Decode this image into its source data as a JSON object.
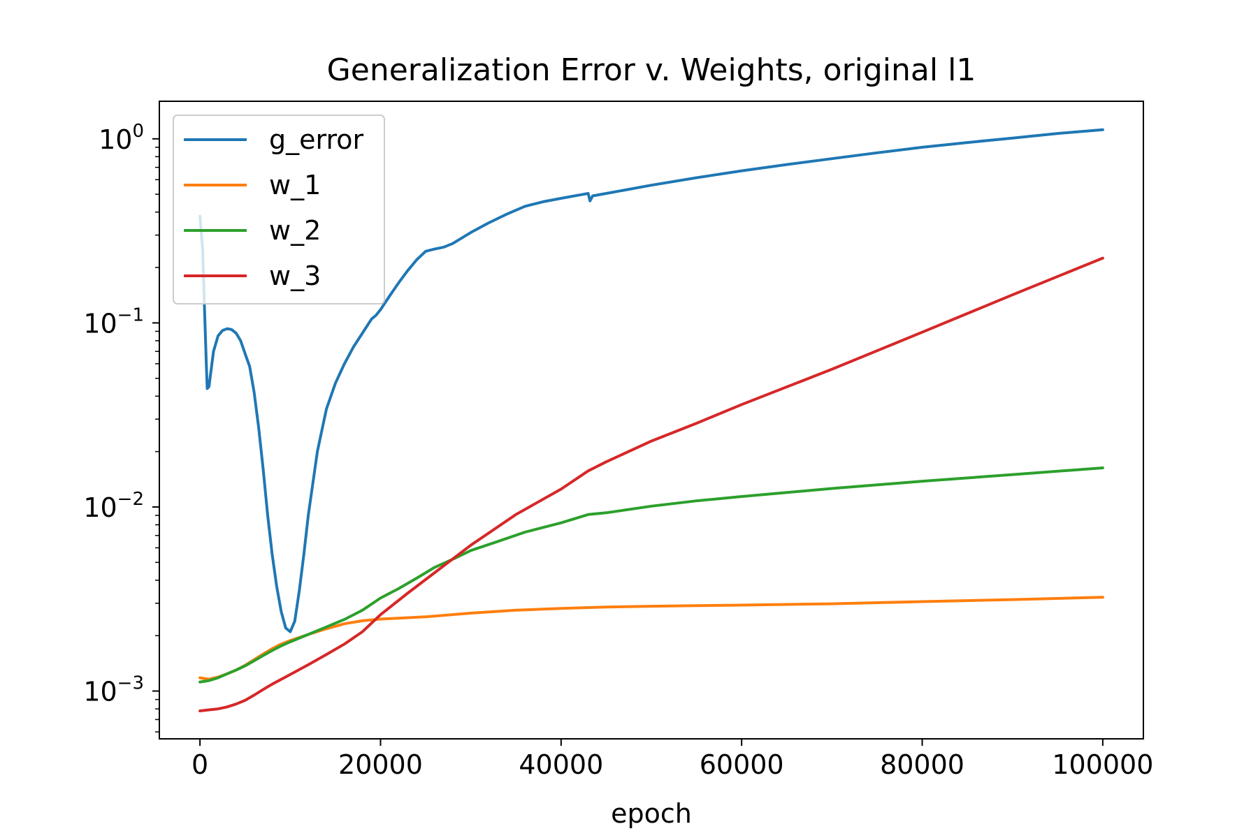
{
  "chart_data": {
    "type": "line",
    "title": "Generalization Error v. Weights, original l1",
    "xlabel": "epoch",
    "ylabel": "",
    "xlim": [
      -4500,
      104500
    ],
    "ylim": [
      0.00055,
      1.6
    ],
    "yscale": "log",
    "grid": false,
    "legend_position": "upper-left",
    "x_ticks": [
      {
        "value": 0,
        "label": "0"
      },
      {
        "value": 20000,
        "label": "20000"
      },
      {
        "value": 40000,
        "label": "40000"
      },
      {
        "value": 60000,
        "label": "60000"
      },
      {
        "value": 80000,
        "label": "80000"
      },
      {
        "value": 100000,
        "label": "100000"
      }
    ],
    "y_ticks": [
      {
        "value": 0.001,
        "base": "10",
        "exp": "−3"
      },
      {
        "value": 0.01,
        "base": "10",
        "exp": "−2"
      },
      {
        "value": 0.1,
        "base": "10",
        "exp": "−1"
      },
      {
        "value": 1,
        "base": "10",
        "exp": "0"
      }
    ],
    "series": [
      {
        "name": "g_error",
        "color": "#1f77b4",
        "points": [
          [
            0,
            0.38
          ],
          [
            300,
            0.25
          ],
          [
            500,
            0.12
          ],
          [
            700,
            0.06
          ],
          [
            800,
            0.044
          ],
          [
            1000,
            0.045
          ],
          [
            1500,
            0.07
          ],
          [
            2000,
            0.085
          ],
          [
            2500,
            0.091
          ],
          [
            3000,
            0.093
          ],
          [
            3500,
            0.092
          ],
          [
            4000,
            0.088
          ],
          [
            4500,
            0.08
          ],
          [
            5000,
            0.068
          ],
          [
            5500,
            0.058
          ],
          [
            6000,
            0.042
          ],
          [
            6500,
            0.027
          ],
          [
            7000,
            0.016
          ],
          [
            7500,
            0.009
          ],
          [
            8000,
            0.0055
          ],
          [
            8500,
            0.0037
          ],
          [
            9000,
            0.0027
          ],
          [
            9500,
            0.0022
          ],
          [
            10000,
            0.0021
          ],
          [
            10500,
            0.0024
          ],
          [
            11000,
            0.0035
          ],
          [
            11500,
            0.0055
          ],
          [
            12000,
            0.009
          ],
          [
            13000,
            0.02
          ],
          [
            14000,
            0.034
          ],
          [
            15000,
            0.047
          ],
          [
            16000,
            0.06
          ],
          [
            17000,
            0.074
          ],
          [
            18000,
            0.088
          ],
          [
            19000,
            0.105
          ],
          [
            19500,
            0.11
          ],
          [
            20000,
            0.118
          ],
          [
            21000,
            0.14
          ],
          [
            22000,
            0.165
          ],
          [
            23000,
            0.192
          ],
          [
            24000,
            0.22
          ],
          [
            25000,
            0.245
          ],
          [
            26000,
            0.252
          ],
          [
            27000,
            0.258
          ],
          [
            28000,
            0.27
          ],
          [
            30000,
            0.31
          ],
          [
            32000,
            0.35
          ],
          [
            34000,
            0.39
          ],
          [
            36000,
            0.43
          ],
          [
            38000,
            0.455
          ],
          [
            40000,
            0.475
          ],
          [
            42000,
            0.495
          ],
          [
            43000,
            0.505
          ],
          [
            43200,
            0.46
          ],
          [
            43500,
            0.49
          ],
          [
            45000,
            0.505
          ],
          [
            50000,
            0.56
          ],
          [
            55000,
            0.615
          ],
          [
            60000,
            0.67
          ],
          [
            65000,
            0.725
          ],
          [
            70000,
            0.78
          ],
          [
            75000,
            0.84
          ],
          [
            80000,
            0.9
          ],
          [
            85000,
            0.955
          ],
          [
            90000,
            1.01
          ],
          [
            95000,
            1.07
          ],
          [
            100000,
            1.12
          ]
        ]
      },
      {
        "name": "w_1",
        "color": "#ff7f0e",
        "points": [
          [
            0,
            0.00118
          ],
          [
            1000,
            0.00116
          ],
          [
            2000,
            0.00119
          ],
          [
            3000,
            0.00124
          ],
          [
            4000,
            0.0013
          ],
          [
            5000,
            0.00138
          ],
          [
            6000,
            0.00148
          ],
          [
            7000,
            0.00159
          ],
          [
            8000,
            0.0017
          ],
          [
            9000,
            0.0018
          ],
          [
            10000,
            0.00188
          ],
          [
            12000,
            0.00203
          ],
          [
            14000,
            0.00218
          ],
          [
            16000,
            0.00232
          ],
          [
            18000,
            0.00241
          ],
          [
            20000,
            0.00246
          ],
          [
            25000,
            0.00253
          ],
          [
            30000,
            0.00265
          ],
          [
            35000,
            0.00275
          ],
          [
            40000,
            0.00281
          ],
          [
            45000,
            0.00286
          ],
          [
            50000,
            0.00289
          ],
          [
            60000,
            0.00293
          ],
          [
            70000,
            0.00298
          ],
          [
            80000,
            0.00306
          ],
          [
            90000,
            0.00314
          ],
          [
            100000,
            0.00323
          ]
        ]
      },
      {
        "name": "w_2",
        "color": "#2ca02c",
        "points": [
          [
            0,
            0.00112
          ],
          [
            1000,
            0.00114
          ],
          [
            2000,
            0.00118
          ],
          [
            3000,
            0.00124
          ],
          [
            4000,
            0.0013
          ],
          [
            5000,
            0.00137
          ],
          [
            6000,
            0.00146
          ],
          [
            7000,
            0.00156
          ],
          [
            8000,
            0.00166
          ],
          [
            9000,
            0.00176
          ],
          [
            10000,
            0.00185
          ],
          [
            12000,
            0.00203
          ],
          [
            14000,
            0.00223
          ],
          [
            16000,
            0.00245
          ],
          [
            18000,
            0.00275
          ],
          [
            20000,
            0.0032
          ],
          [
            22000,
            0.0036
          ],
          [
            24000,
            0.0041
          ],
          [
            26000,
            0.0047
          ],
          [
            28000,
            0.0052
          ],
          [
            30000,
            0.0058
          ],
          [
            33000,
            0.0065
          ],
          [
            36000,
            0.0073
          ],
          [
            40000,
            0.0082
          ],
          [
            43000,
            0.0091
          ],
          [
            45000,
            0.0093
          ],
          [
            50000,
            0.0101
          ],
          [
            55000,
            0.0108
          ],
          [
            60000,
            0.0114
          ],
          [
            70000,
            0.0126
          ],
          [
            80000,
            0.0138
          ],
          [
            90000,
            0.015
          ],
          [
            100000,
            0.0163
          ]
        ]
      },
      {
        "name": "w_3",
        "color": "#d62728",
        "points": [
          [
            0,
            0.00078
          ],
          [
            1000,
            0.00079
          ],
          [
            2000,
            0.0008
          ],
          [
            3000,
            0.00082
          ],
          [
            4000,
            0.00085
          ],
          [
            5000,
            0.00089
          ],
          [
            6000,
            0.00095
          ],
          [
            7000,
            0.00102
          ],
          [
            8000,
            0.00109
          ],
          [
            10000,
            0.00123
          ],
          [
            12000,
            0.00139
          ],
          [
            14000,
            0.00158
          ],
          [
            16000,
            0.0018
          ],
          [
            18000,
            0.0021
          ],
          [
            20000,
            0.0026
          ],
          [
            23000,
            0.0034
          ],
          [
            26000,
            0.0044
          ],
          [
            30000,
            0.0062
          ],
          [
            35000,
            0.0091
          ],
          [
            40000,
            0.0125
          ],
          [
            43000,
            0.0157
          ],
          [
            45000,
            0.0176
          ],
          [
            50000,
            0.0228
          ],
          [
            55000,
            0.0285
          ],
          [
            60000,
            0.036
          ],
          [
            70000,
            0.056
          ],
          [
            80000,
            0.089
          ],
          [
            90000,
            0.142
          ],
          [
            100000,
            0.225
          ]
        ]
      }
    ]
  }
}
